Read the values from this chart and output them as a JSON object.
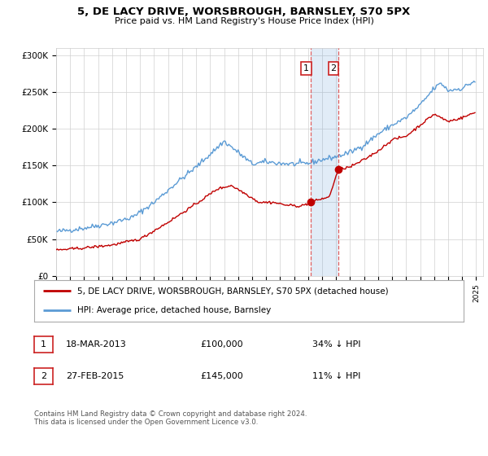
{
  "title": "5, DE LACY DRIVE, WORSBROUGH, BARNSLEY, S70 5PX",
  "subtitle": "Price paid vs. HM Land Registry's House Price Index (HPI)",
  "ylabel_ticks": [
    "£0",
    "£50K",
    "£100K",
    "£150K",
    "£200K",
    "£250K",
    "£300K"
  ],
  "ytick_values": [
    0,
    50000,
    100000,
    150000,
    200000,
    250000,
    300000
  ],
  "ylim": [
    0,
    310000
  ],
  "xlim_start": 1995.0,
  "xlim_end": 2025.5,
  "hpi_color": "#5b9bd5",
  "price_color": "#c00000",
  "transaction1_date": 2013.21,
  "transaction1_price": 100000,
  "transaction2_date": 2015.16,
  "transaction2_price": 145000,
  "legend_line1": "5, DE LACY DRIVE, WORSBROUGH, BARNSLEY, S70 5PX (detached house)",
  "legend_line2": "HPI: Average price, detached house, Barnsley",
  "table_row1": [
    "1",
    "18-MAR-2013",
    "£100,000",
    "34% ↓ HPI"
  ],
  "table_row2": [
    "2",
    "27-FEB-2015",
    "£145,000",
    "11% ↓ HPI"
  ],
  "footer": "Contains HM Land Registry data © Crown copyright and database right 2024.\nThis data is licensed under the Open Government Licence v3.0.",
  "background_color": "#ffffff",
  "hpi_anchors_x": [
    1995.0,
    1997.0,
    1999.0,
    2000.5,
    2002.0,
    2003.5,
    2005.0,
    2007.0,
    2008.0,
    2009.0,
    2010.0,
    2011.0,
    2012.0,
    2013.0,
    2014.0,
    2015.0,
    2016.0,
    2017.0,
    2018.0,
    2019.0,
    2020.0,
    2021.0,
    2022.0,
    2022.5,
    2023.0,
    2024.0,
    2024.9
  ],
  "hpi_anchors_y": [
    60000,
    65000,
    72000,
    80000,
    100000,
    125000,
    148000,
    183000,
    168000,
    152000,
    155000,
    153000,
    152000,
    153000,
    158000,
    162000,
    168000,
    178000,
    193000,
    205000,
    215000,
    232000,
    255000,
    262000,
    252000,
    255000,
    265000
  ],
  "price_anchors_x": [
    1995.0,
    1997.0,
    1999.0,
    2001.0,
    2003.0,
    2005.0,
    2006.5,
    2007.5,
    2008.5,
    2009.5,
    2010.5,
    2011.5,
    2012.5,
    2013.21,
    2014.0,
    2014.5,
    2015.16,
    2016.0,
    2017.0,
    2018.0,
    2019.0,
    2020.0,
    2021.0,
    2022.0,
    2023.0,
    2024.0,
    2024.9
  ],
  "price_anchors_y": [
    35000,
    38000,
    42000,
    50000,
    73000,
    98000,
    118000,
    123000,
    112000,
    100000,
    100000,
    96000,
    95000,
    100000,
    105000,
    107000,
    145000,
    148000,
    158000,
    170000,
    185000,
    190000,
    205000,
    220000,
    210000,
    215000,
    222000
  ]
}
